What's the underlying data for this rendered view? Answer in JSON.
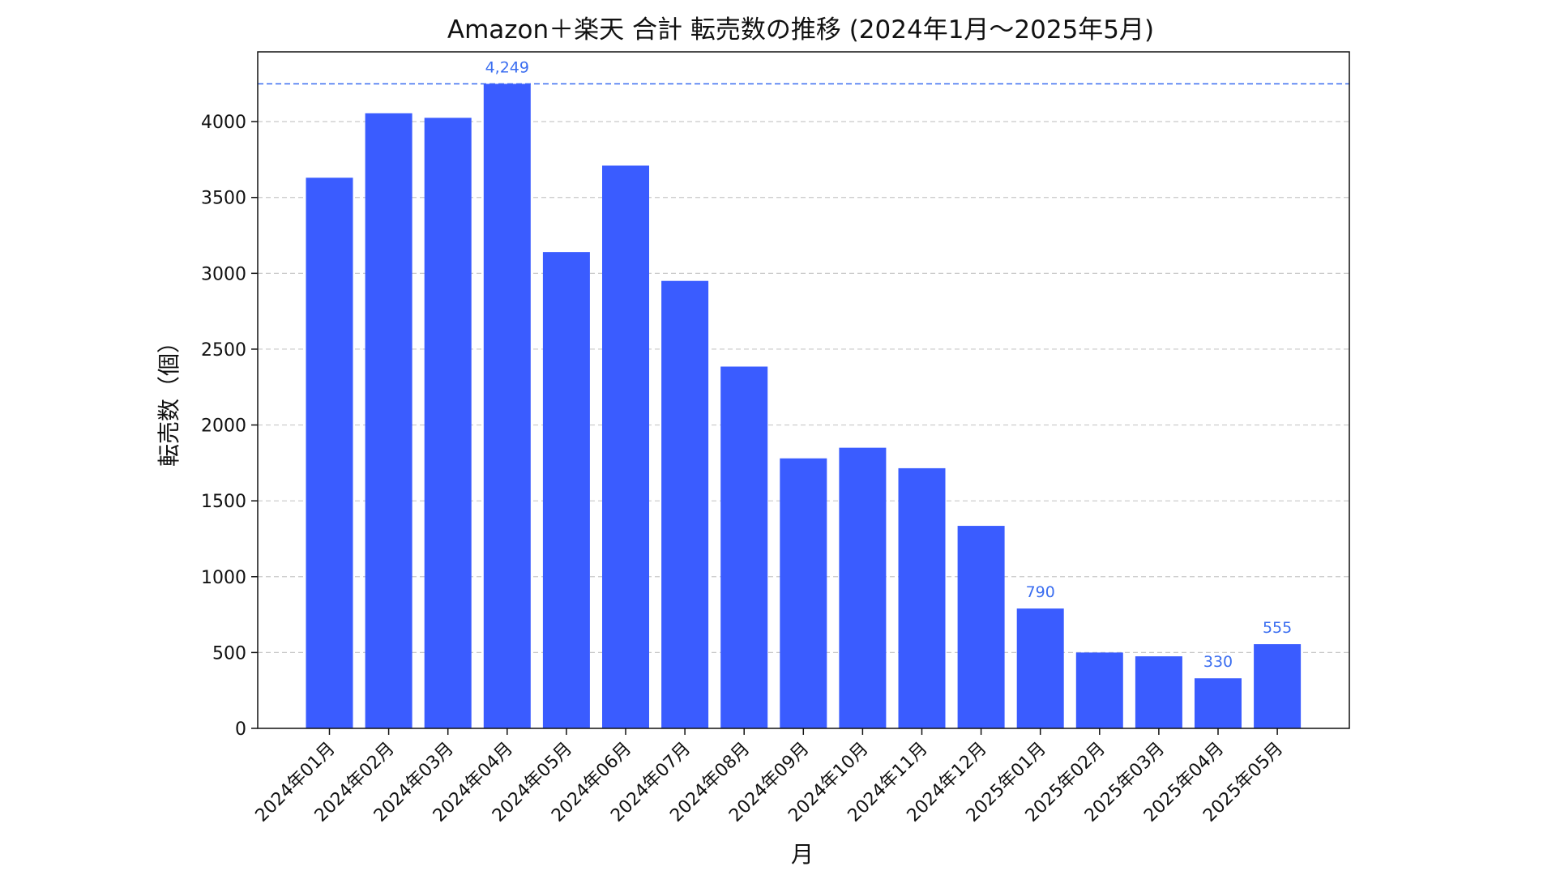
{
  "chart_data": {
    "type": "bar",
    "title": "Amazon＋楽天 合計 転売数の推移 (2024年1月〜2025年5月)",
    "xlabel": "月",
    "ylabel": "転売数（個）",
    "categories": [
      "2024年01月",
      "2024年02月",
      "2024年03月",
      "2024年04月",
      "2024年05月",
      "2024年06月",
      "2024年07月",
      "2024年08月",
      "2024年09月",
      "2024年10月",
      "2024年11月",
      "2024年12月",
      "2025年01月",
      "2025年02月",
      "2025年03月",
      "2025年04月",
      "2025年05月"
    ],
    "values": [
      3630,
      4055,
      4025,
      4249,
      3140,
      3710,
      2950,
      2385,
      1780,
      1850,
      1715,
      1335,
      790,
      500,
      475,
      330,
      555
    ],
    "ylim": [
      0,
      4460
    ],
    "yticks": [
      0,
      500,
      1000,
      1500,
      2000,
      2500,
      3000,
      3500,
      4000
    ],
    "ytick_labels": [
      "0",
      "500",
      "1000",
      "1500",
      "2000",
      "2500",
      "3000",
      "3500",
      "4000"
    ],
    "bar_color": "#3a5cff",
    "reference_line": {
      "value": 4249,
      "color": "#3a6df0",
      "style": "dashed"
    },
    "annotations": [
      {
        "index": 3,
        "text": "4,249"
      },
      {
        "index": 12,
        "text": "790"
      },
      {
        "index": 15,
        "text": "330"
      },
      {
        "index": 16,
        "text": "555"
      }
    ],
    "grid": {
      "y": true,
      "x": false,
      "style": "dashed"
    },
    "legend": "none"
  }
}
